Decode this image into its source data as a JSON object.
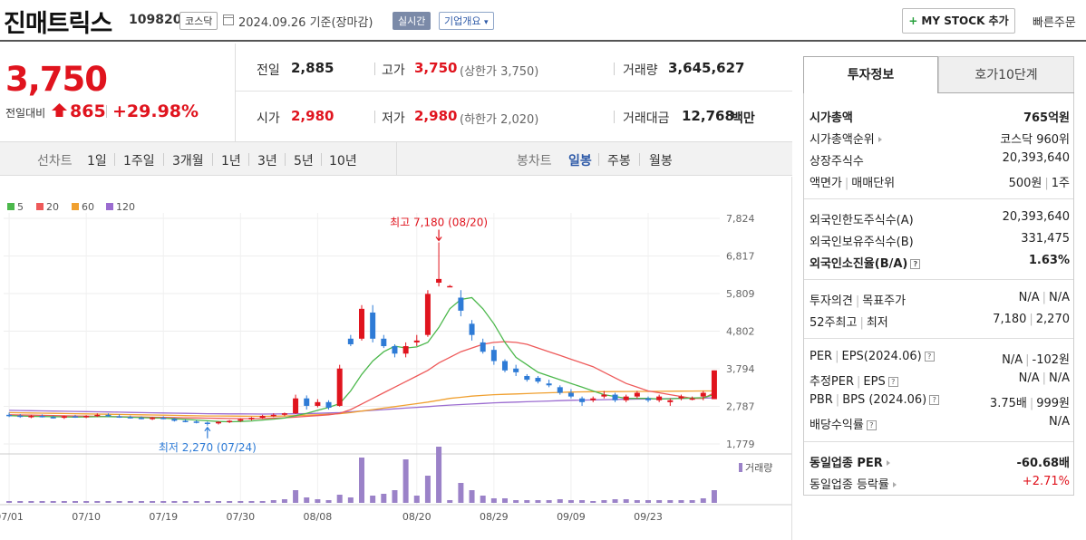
{
  "header": {
    "company_name": "진매트릭스",
    "code": "109820",
    "market": "코스닥",
    "date_text": "2024.09.26 기준(장마감)",
    "realtime": "실시간",
    "company_info": "기업개요",
    "mystock_label": "MY STOCK 추가",
    "quick_order": "빠른주문"
  },
  "price": {
    "current": "3,750",
    "change_label": "전일대비",
    "change_amount": "865",
    "change_rate": "+29.98%",
    "colors": {
      "up": "#e0141e",
      "down": "#2e7bd6"
    }
  },
  "stats": {
    "prev_close": {
      "label": "전일",
      "value": "2,885"
    },
    "high": {
      "label": "고가",
      "value": "3,750",
      "sub": "(상한가 3,750)"
    },
    "volume": {
      "label": "거래량",
      "value": "3,645,627"
    },
    "open": {
      "label": "시가",
      "value": "2,980"
    },
    "low": {
      "label": "저가",
      "value": "2,980",
      "sub": "(하한가 2,020)"
    },
    "amount": {
      "label": "거래대금",
      "value": "12,768",
      "unit": "백만"
    }
  },
  "chart_tabs": {
    "line_label": "선차트",
    "line_periods": [
      "1일",
      "1주일",
      "3개월",
      "1년",
      "3년",
      "5년",
      "10년"
    ],
    "candle_label": "봉차트",
    "candle_periods": [
      "일봉",
      "주봉",
      "월봉"
    ],
    "active": "일봉"
  },
  "chart_data": {
    "type": "candlestick",
    "legend": [
      {
        "name": "5",
        "color": "#4cb84c"
      },
      {
        "name": "20",
        "color": "#ee5a5a"
      },
      {
        "name": "60",
        "color": "#f0a030"
      },
      {
        "name": "120",
        "color": "#9b6cd0"
      }
    ],
    "y_ticks": [
      "7,824",
      "6,817",
      "5,809",
      "4,802",
      "3,794",
      "2,787",
      "1,779"
    ],
    "y_range": [
      1779,
      7824
    ],
    "x_ticks": [
      "07/01",
      "07/10",
      "07/19",
      "07/30",
      "08/08",
      "08/20",
      "08/29",
      "09/09",
      "09/23"
    ],
    "max_annotation": "최고 7,180 (08/20)",
    "min_annotation": "최저 2,270 (07/24)",
    "volume_label": "거래량",
    "candles": [
      [
        2560,
        2620,
        2500,
        2540
      ],
      [
        2540,
        2580,
        2480,
        2510
      ],
      [
        2510,
        2560,
        2470,
        2530
      ],
      [
        2530,
        2570,
        2490,
        2500
      ],
      [
        2500,
        2540,
        2460,
        2480
      ],
      [
        2480,
        2540,
        2450,
        2520
      ],
      [
        2520,
        2560,
        2480,
        2500
      ],
      [
        2500,
        2550,
        2470,
        2530
      ],
      [
        2530,
        2600,
        2500,
        2560
      ],
      [
        2560,
        2600,
        2500,
        2520
      ],
      [
        2520,
        2570,
        2480,
        2500
      ],
      [
        2500,
        2540,
        2460,
        2480
      ],
      [
        2480,
        2520,
        2440,
        2460
      ],
      [
        2460,
        2500,
        2420,
        2480
      ],
      [
        2480,
        2520,
        2440,
        2450
      ],
      [
        2450,
        2480,
        2380,
        2400
      ],
      [
        2400,
        2440,
        2360,
        2380
      ],
      [
        2380,
        2420,
        2330,
        2350
      ],
      [
        2350,
        2380,
        2270,
        2330
      ],
      [
        2330,
        2390,
        2300,
        2370
      ],
      [
        2370,
        2420,
        2340,
        2400
      ],
      [
        2400,
        2460,
        2370,
        2440
      ],
      [
        2440,
        2500,
        2410,
        2480
      ],
      [
        2480,
        2560,
        2450,
        2530
      ],
      [
        2530,
        2600,
        2500,
        2560
      ],
      [
        2560,
        2620,
        2520,
        2600
      ],
      [
        2600,
        3100,
        2580,
        3000
      ],
      [
        3000,
        3080,
        2700,
        2800
      ],
      [
        2800,
        2980,
        2760,
        2900
      ],
      [
        2900,
        2950,
        2700,
        2750
      ],
      [
        2800,
        3900,
        2780,
        3800
      ],
      [
        4600,
        4700,
        4400,
        4450
      ],
      [
        4600,
        5500,
        4550,
        5400
      ],
      [
        5300,
        5500,
        4500,
        4600
      ],
      [
        4600,
        4700,
        4350,
        4400
      ],
      [
        4400,
        4450,
        4100,
        4200
      ],
      [
        4200,
        4500,
        4100,
        4400
      ],
      [
        4500,
        4700,
        4400,
        4550
      ],
      [
        4700,
        5900,
        4650,
        5800
      ],
      [
        6100,
        7180,
        6000,
        6200
      ],
      [
        6000,
        6040,
        5980,
        6010
      ],
      [
        5700,
        5900,
        5200,
        5350
      ],
      [
        5000,
        5100,
        4550,
        4700
      ],
      [
        4500,
        4600,
        4200,
        4250
      ],
      [
        4300,
        4400,
        3900,
        4000
      ],
      [
        4000,
        4050,
        3700,
        3750
      ],
      [
        3800,
        3900,
        3600,
        3700
      ],
      [
        3600,
        3650,
        3450,
        3500
      ],
      [
        3550,
        3600,
        3400,
        3450
      ],
      [
        3400,
        3500,
        3300,
        3350
      ],
      [
        3300,
        3350,
        3100,
        3150
      ],
      [
        3150,
        3250,
        3000,
        3050
      ],
      [
        3000,
        3050,
        2800,
        2900
      ],
      [
        2950,
        3050,
        2900,
        3000
      ],
      [
        3050,
        3200,
        3000,
        3100
      ],
      [
        3100,
        3150,
        2900,
        2950
      ],
      [
        2950,
        3100,
        2900,
        3050
      ],
      [
        3050,
        3200,
        3000,
        3150
      ],
      [
        3000,
        3050,
        2900,
        2950
      ],
      [
        2950,
        3100,
        2900,
        3050
      ],
      [
        2900,
        3000,
        2800,
        2950
      ],
      [
        3000,
        3100,
        2950,
        3050
      ],
      [
        3000,
        3050,
        2950,
        3000
      ],
      [
        3050,
        3200,
        2950,
        3150
      ],
      [
        2980,
        3750,
        2980,
        3750
      ]
    ],
    "volume_heights": [
      2,
      2,
      2,
      2,
      2,
      2,
      2,
      2,
      2,
      2,
      2,
      2,
      2,
      2,
      2,
      2,
      2,
      2,
      2,
      2,
      2,
      2,
      2,
      2,
      3,
      4,
      14,
      6,
      4,
      3,
      9,
      6,
      50,
      8,
      10,
      14,
      48,
      8,
      30,
      62,
      3,
      22,
      14,
      8,
      5,
      5,
      3,
      3,
      3,
      3,
      4,
      3,
      3,
      2,
      3,
      4,
      4,
      3,
      3,
      3,
      3,
      3,
      3,
      5,
      14
    ],
    "ma5": [
      2540,
      2530,
      2520,
      2515,
      2510,
      2505,
      2500,
      2505,
      2510,
      2510,
      2505,
      2495,
      2485,
      2475,
      2470,
      2455,
      2440,
      2420,
      2400,
      2380,
      2375,
      2380,
      2395,
      2420,
      2445,
      2475,
      2540,
      2600,
      2680,
      2760,
      2860,
      3200,
      3640,
      4000,
      4250,
      4400,
      4350,
      4380,
      4500,
      4900,
      5400,
      5650,
      5700,
      5400,
      5000,
      4500,
      4100,
      3900,
      3700,
      3600,
      3500,
      3400,
      3300,
      3200,
      3100,
      3050,
      3000,
      3000,
      3000,
      2980,
      2990,
      3000,
      3010,
      3020,
      3100
    ],
    "ma20": [
      2560,
      2555,
      2550,
      2545,
      2540,
      2535,
      2530,
      2525,
      2520,
      2515,
      2510,
      2505,
      2500,
      2495,
      2490,
      2485,
      2480,
      2475,
      2470,
      2465,
      2460,
      2458,
      2456,
      2460,
      2470,
      2480,
      2500,
      2520,
      2540,
      2560,
      2600,
      2700,
      2850,
      3000,
      3150,
      3300,
      3450,
      3600,
      3750,
      3950,
      4100,
      4250,
      4350,
      4450,
      4500,
      4520,
      4500,
      4450,
      4350,
      4250,
      4150,
      4050,
      3950,
      3850,
      3700,
      3550,
      3400,
      3300,
      3200,
      3150,
      3100,
      3050,
      3000,
      3000,
      3150
    ],
    "ma60": [
      2620,
      2615,
      2610,
      2605,
      2600,
      2595,
      2590,
      2585,
      2580,
      2575,
      2570,
      2565,
      2560,
      2555,
      2550,
      2545,
      2540,
      2535,
      2530,
      2528,
      2526,
      2524,
      2522,
      2520,
      2525,
      2530,
      2540,
      2550,
      2560,
      2575,
      2590,
      2620,
      2660,
      2700,
      2740,
      2780,
      2820,
      2860,
      2900,
      2950,
      3000,
      3030,
      3060,
      3080,
      3100,
      3110,
      3120,
      3130,
      3140,
      3150,
      3160,
      3170,
      3175,
      3180,
      3180,
      3182,
      3184,
      3186,
      3188,
      3190,
      3192,
      3194,
      3196,
      3198,
      3200
    ],
    "ma120": [
      2680,
      2675,
      2670,
      2665,
      2660,
      2655,
      2650,
      2645,
      2640,
      2635,
      2630,
      2625,
      2620,
      2615,
      2610,
      2605,
      2600,
      2595,
      2590,
      2588,
      2586,
      2584,
      2582,
      2580,
      2582,
      2584,
      2588,
      2592,
      2600,
      2610,
      2620,
      2640,
      2660,
      2680,
      2700,
      2720,
      2740,
      2760,
      2780,
      2800,
      2820,
      2835,
      2850,
      2865,
      2880,
      2890,
      2900,
      2910,
      2920,
      2930,
      2940,
      2948,
      2955,
      2960,
      2965,
      2970,
      2975,
      2980,
      2985,
      2990,
      2995,
      3000,
      3005,
      3010,
      3015
    ]
  },
  "invest_panel": {
    "tab_invest": "투자정보",
    "tab_orderbook": "호가10단계",
    "market_cap": {
      "label": "시가총액",
      "value": "765억원"
    },
    "market_cap_rank": {
      "label": "시가총액순위",
      "value": "코스닥 960위"
    },
    "shares": {
      "label": "상장주식수",
      "value": "20,393,640"
    },
    "face_value": {
      "label1": "액면가",
      "label2": "매매단위",
      "value1": "500원",
      "value2": "1주"
    },
    "foreign_limit": {
      "label": "외국인한도주식수(A)",
      "value": "20,393,640"
    },
    "foreign_hold": {
      "label": "외국인보유주식수(B)",
      "value": "331,475"
    },
    "foreign_rate": {
      "label": "외국인소진율(B/A)",
      "value": "1.63%"
    },
    "opinion": {
      "label1": "투자의견",
      "label2": "목표주가",
      "value1": "N/A",
      "value2": "N/A"
    },
    "week52": {
      "label1": "52주최고",
      "label2": "최저",
      "value1": "7,180",
      "value2": "2,270"
    },
    "per_eps": {
      "label1": "PER",
      "label2": "EPS(2024.06)",
      "value1": "N/A",
      "value2": "-102원"
    },
    "est_per_eps": {
      "label1": "추정PER",
      "label2": "EPS",
      "value1": "N/A",
      "value2": "N/A"
    },
    "pbr_bps": {
      "label1": "PBR",
      "label2": "BPS (2024.06)",
      "value1": "3.75배",
      "value2": "999원"
    },
    "dividend": {
      "label": "배당수익률",
      "value": "N/A"
    },
    "industry_per": {
      "label": "동일업종 PER",
      "value": "-60.68배"
    },
    "industry_rate": {
      "label": "동일업종 등락률",
      "value": "+2.71%"
    }
  }
}
